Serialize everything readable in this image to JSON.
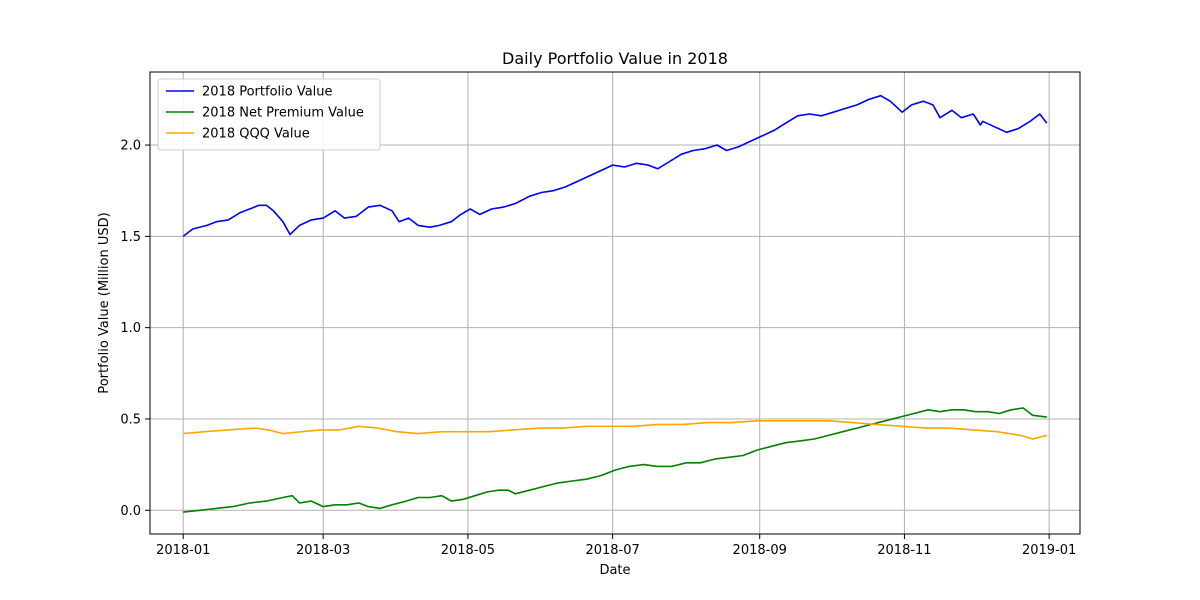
{
  "chart_data": {
    "type": "line",
    "title": "Daily Portfolio Value in 2018",
    "xlabel": "Date",
    "ylabel": "Portfolio Value (Million USD)",
    "xlim": [
      "2017-12-18",
      "2019-01-14"
    ],
    "ylim": [
      -0.13,
      2.4
    ],
    "x_ticks": [
      "2018-01",
      "2018-03",
      "2018-05",
      "2018-07",
      "2018-09",
      "2018-11",
      "2019-01"
    ],
    "y_ticks": [
      0.0,
      0.5,
      1.0,
      1.5,
      2.0
    ],
    "y_tick_labels": [
      "0.0",
      "0.5",
      "1.0",
      "1.5",
      "2.0"
    ],
    "grid": true,
    "legend_position": "top-left",
    "series": [
      {
        "name": "2018 Portfolio Value",
        "color": "#0000ff",
        "points": [
          [
            "2018-01-01",
            1.5
          ],
          [
            "2018-01-05",
            1.54
          ],
          [
            "2018-01-11",
            1.56
          ],
          [
            "2018-01-15",
            1.58
          ],
          [
            "2018-01-20",
            1.59
          ],
          [
            "2018-01-25",
            1.63
          ],
          [
            "2018-01-29",
            1.65
          ],
          [
            "2018-02-02",
            1.67
          ],
          [
            "2018-02-05",
            1.67
          ],
          [
            "2018-02-08",
            1.64
          ],
          [
            "2018-02-12",
            1.58
          ],
          [
            "2018-02-15",
            1.51
          ],
          [
            "2018-02-19",
            1.56
          ],
          [
            "2018-02-24",
            1.59
          ],
          [
            "2018-03-01",
            1.6
          ],
          [
            "2018-03-06",
            1.64
          ],
          [
            "2018-03-10",
            1.6
          ],
          [
            "2018-03-15",
            1.61
          ],
          [
            "2018-03-20",
            1.66
          ],
          [
            "2018-03-25",
            1.67
          ],
          [
            "2018-03-30",
            1.64
          ],
          [
            "2018-04-02",
            1.58
          ],
          [
            "2018-04-06",
            1.6
          ],
          [
            "2018-04-10",
            1.56
          ],
          [
            "2018-04-15",
            1.55
          ],
          [
            "2018-04-19",
            1.56
          ],
          [
            "2018-04-24",
            1.58
          ],
          [
            "2018-04-28",
            1.62
          ],
          [
            "2018-05-02",
            1.65
          ],
          [
            "2018-05-06",
            1.62
          ],
          [
            "2018-05-11",
            1.65
          ],
          [
            "2018-05-16",
            1.66
          ],
          [
            "2018-05-21",
            1.68
          ],
          [
            "2018-05-27",
            1.72
          ],
          [
            "2018-06-01",
            1.74
          ],
          [
            "2018-06-06",
            1.75
          ],
          [
            "2018-06-11",
            1.77
          ],
          [
            "2018-06-16",
            1.8
          ],
          [
            "2018-06-21",
            1.83
          ],
          [
            "2018-06-26",
            1.86
          ],
          [
            "2018-07-01",
            1.89
          ],
          [
            "2018-07-06",
            1.88
          ],
          [
            "2018-07-11",
            1.9
          ],
          [
            "2018-07-16",
            1.89
          ],
          [
            "2018-07-20",
            1.87
          ],
          [
            "2018-07-25",
            1.91
          ],
          [
            "2018-07-30",
            1.95
          ],
          [
            "2018-08-04",
            1.97
          ],
          [
            "2018-08-09",
            1.98
          ],
          [
            "2018-08-14",
            2.0
          ],
          [
            "2018-08-18",
            1.97
          ],
          [
            "2018-08-23",
            1.99
          ],
          [
            "2018-08-28",
            2.02
          ],
          [
            "2018-09-02",
            2.05
          ],
          [
            "2018-09-07",
            2.08
          ],
          [
            "2018-09-12",
            2.12
          ],
          [
            "2018-09-17",
            2.16
          ],
          [
            "2018-09-22",
            2.17
          ],
          [
            "2018-09-27",
            2.16
          ],
          [
            "2018-10-02",
            2.18
          ],
          [
            "2018-10-07",
            2.2
          ],
          [
            "2018-10-12",
            2.22
          ],
          [
            "2018-10-17",
            2.25
          ],
          [
            "2018-10-22",
            2.27
          ],
          [
            "2018-10-26",
            2.24
          ],
          [
            "2018-10-31",
            2.18
          ],
          [
            "2018-11-04",
            2.22
          ],
          [
            "2018-11-09",
            2.24
          ],
          [
            "2018-11-13",
            2.22
          ],
          [
            "2018-11-16",
            2.15
          ],
          [
            "2018-11-21",
            2.19
          ],
          [
            "2018-11-25",
            2.15
          ],
          [
            "2018-11-30",
            2.17
          ],
          [
            "2018-12-04",
            2.13
          ],
          [
            "2018-12-09",
            2.1
          ],
          [
            "2018-12-14",
            2.07
          ],
          [
            "2018-12-19",
            2.09
          ],
          [
            "2018-12-24",
            2.13
          ],
          [
            "2018-12-28",
            2.17
          ],
          [
            "2018-12-31",
            2.12
          ],
          [
            "2018-12-03",
            2.11
          ]
        ]
      },
      {
        "name": "2018 Net Premium Value",
        "color": "#008000",
        "points": [
          [
            "2018-01-01",
            -0.01
          ],
          [
            "2018-01-08",
            0.0
          ],
          [
            "2018-01-15",
            0.01
          ],
          [
            "2018-01-22",
            0.02
          ],
          [
            "2018-01-29",
            0.04
          ],
          [
            "2018-02-05",
            0.05
          ],
          [
            "2018-02-12",
            0.07
          ],
          [
            "2018-02-16",
            0.08
          ],
          [
            "2018-02-19",
            0.04
          ],
          [
            "2018-02-24",
            0.05
          ],
          [
            "2018-03-01",
            0.02
          ],
          [
            "2018-03-06",
            0.03
          ],
          [
            "2018-03-11",
            0.03
          ],
          [
            "2018-03-16",
            0.04
          ],
          [
            "2018-03-20",
            0.02
          ],
          [
            "2018-03-25",
            0.01
          ],
          [
            "2018-03-30",
            0.03
          ],
          [
            "2018-04-05",
            0.05
          ],
          [
            "2018-04-10",
            0.07
          ],
          [
            "2018-04-15",
            0.07
          ],
          [
            "2018-04-20",
            0.08
          ],
          [
            "2018-04-24",
            0.05
          ],
          [
            "2018-04-29",
            0.06
          ],
          [
            "2018-05-04",
            0.08
          ],
          [
            "2018-05-09",
            0.1
          ],
          [
            "2018-05-14",
            0.11
          ],
          [
            "2018-05-18",
            0.11
          ],
          [
            "2018-05-21",
            0.09
          ],
          [
            "2018-05-27",
            0.11
          ],
          [
            "2018-06-02",
            0.13
          ],
          [
            "2018-06-08",
            0.15
          ],
          [
            "2018-06-14",
            0.16
          ],
          [
            "2018-06-20",
            0.17
          ],
          [
            "2018-06-26",
            0.19
          ],
          [
            "2018-07-02",
            0.22
          ],
          [
            "2018-07-08",
            0.24
          ],
          [
            "2018-07-14",
            0.25
          ],
          [
            "2018-07-20",
            0.24
          ],
          [
            "2018-07-26",
            0.24
          ],
          [
            "2018-08-01",
            0.26
          ],
          [
            "2018-08-07",
            0.26
          ],
          [
            "2018-08-13",
            0.28
          ],
          [
            "2018-08-19",
            0.29
          ],
          [
            "2018-08-25",
            0.3
          ],
          [
            "2018-08-31",
            0.33
          ],
          [
            "2018-09-06",
            0.35
          ],
          [
            "2018-09-12",
            0.37
          ],
          [
            "2018-09-18",
            0.38
          ],
          [
            "2018-09-24",
            0.39
          ],
          [
            "2018-09-30",
            0.41
          ],
          [
            "2018-10-06",
            0.43
          ],
          [
            "2018-10-12",
            0.45
          ],
          [
            "2018-10-18",
            0.47
          ],
          [
            "2018-10-24",
            0.49
          ],
          [
            "2018-10-30",
            0.51
          ],
          [
            "2018-11-05",
            0.53
          ],
          [
            "2018-11-11",
            0.55
          ],
          [
            "2018-11-16",
            0.54
          ],
          [
            "2018-11-21",
            0.55
          ],
          [
            "2018-11-26",
            0.55
          ],
          [
            "2018-12-01",
            0.54
          ],
          [
            "2018-12-06",
            0.54
          ],
          [
            "2018-12-11",
            0.53
          ],
          [
            "2018-12-16",
            0.55
          ],
          [
            "2018-12-21",
            0.56
          ],
          [
            "2018-12-25",
            0.52
          ],
          [
            "2018-12-31",
            0.51
          ]
        ]
      },
      {
        "name": "2018 QQQ Value",
        "color": "#ffa500",
        "points": [
          [
            "2018-01-01",
            0.42
          ],
          [
            "2018-01-10",
            0.43
          ],
          [
            "2018-01-20",
            0.44
          ],
          [
            "2018-01-31",
            0.45
          ],
          [
            "2018-02-06",
            0.44
          ],
          [
            "2018-02-12",
            0.42
          ],
          [
            "2018-02-20",
            0.43
          ],
          [
            "2018-02-28",
            0.44
          ],
          [
            "2018-03-08",
            0.44
          ],
          [
            "2018-03-16",
            0.46
          ],
          [
            "2018-03-24",
            0.45
          ],
          [
            "2018-04-01",
            0.43
          ],
          [
            "2018-04-10",
            0.42
          ],
          [
            "2018-04-20",
            0.43
          ],
          [
            "2018-04-30",
            0.43
          ],
          [
            "2018-05-10",
            0.43
          ],
          [
            "2018-05-20",
            0.44
          ],
          [
            "2018-05-31",
            0.45
          ],
          [
            "2018-06-10",
            0.45
          ],
          [
            "2018-06-20",
            0.46
          ],
          [
            "2018-06-30",
            0.46
          ],
          [
            "2018-07-10",
            0.46
          ],
          [
            "2018-07-20",
            0.47
          ],
          [
            "2018-07-31",
            0.47
          ],
          [
            "2018-08-10",
            0.48
          ],
          [
            "2018-08-20",
            0.48
          ],
          [
            "2018-08-31",
            0.49
          ],
          [
            "2018-09-10",
            0.49
          ],
          [
            "2018-09-20",
            0.49
          ],
          [
            "2018-09-30",
            0.49
          ],
          [
            "2018-10-10",
            0.48
          ],
          [
            "2018-10-20",
            0.47
          ],
          [
            "2018-10-31",
            0.46
          ],
          [
            "2018-11-10",
            0.45
          ],
          [
            "2018-11-20",
            0.45
          ],
          [
            "2018-11-30",
            0.44
          ],
          [
            "2018-12-10",
            0.43
          ],
          [
            "2018-12-20",
            0.41
          ],
          [
            "2018-12-25",
            0.39
          ],
          [
            "2018-12-31",
            0.41
          ]
        ]
      }
    ]
  }
}
